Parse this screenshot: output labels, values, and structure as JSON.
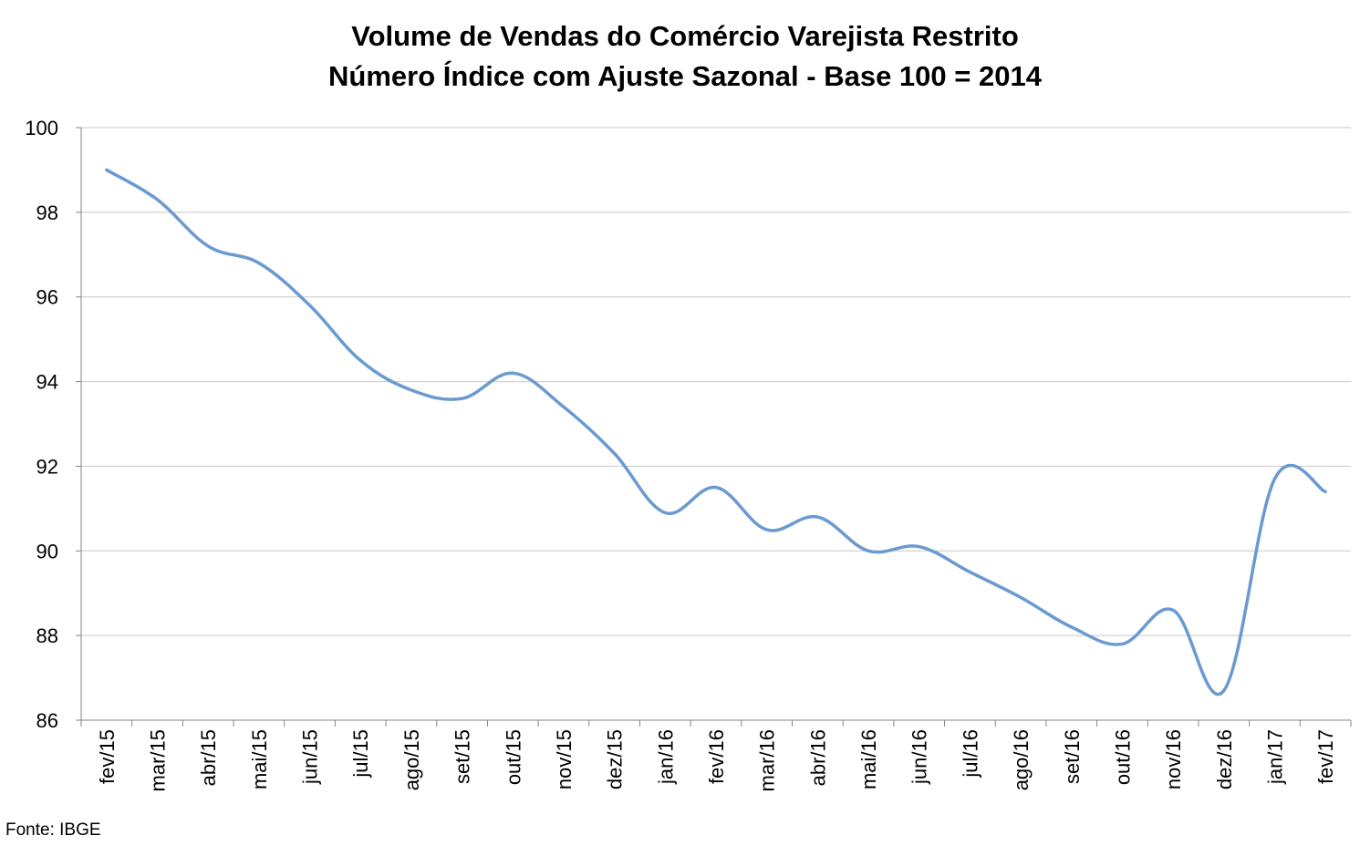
{
  "chart_data": {
    "type": "line",
    "title": "Volume de Vendas do Comércio Varejista Restrito",
    "subtitle": "Número Índice com Ajuste Sazonal - Base 100 = 2014",
    "xlabel": "",
    "ylabel": "",
    "categories": [
      "fev/15",
      "mar/15",
      "abr/15",
      "mai/15",
      "jun/15",
      "jul/15",
      "ago/15",
      "set/15",
      "out/15",
      "nov/15",
      "dez/15",
      "jan/16",
      "fev/16",
      "mar/16",
      "abr/16",
      "mai/16",
      "jun/16",
      "jul/16",
      "ago/16",
      "set/16",
      "out/16",
      "nov/16",
      "dez/16",
      "jan/17",
      "fev/17"
    ],
    "series": [
      {
        "values": [
          99.0,
          98.3,
          97.2,
          96.8,
          95.8,
          94.5,
          93.8,
          93.6,
          94.2,
          93.4,
          92.3,
          90.9,
          91.5,
          90.5,
          90.8,
          90.0,
          90.1,
          89.5,
          88.9,
          88.2,
          87.8,
          88.6,
          86.7,
          91.7,
          91.4
        ],
        "color": "#6a9ad0"
      }
    ],
    "ylim": [
      86,
      100
    ],
    "yticks": [
      86,
      88,
      90,
      92,
      94,
      96,
      98,
      100
    ],
    "grid": true,
    "legend": "none",
    "source": "Fonte: IBGE"
  }
}
